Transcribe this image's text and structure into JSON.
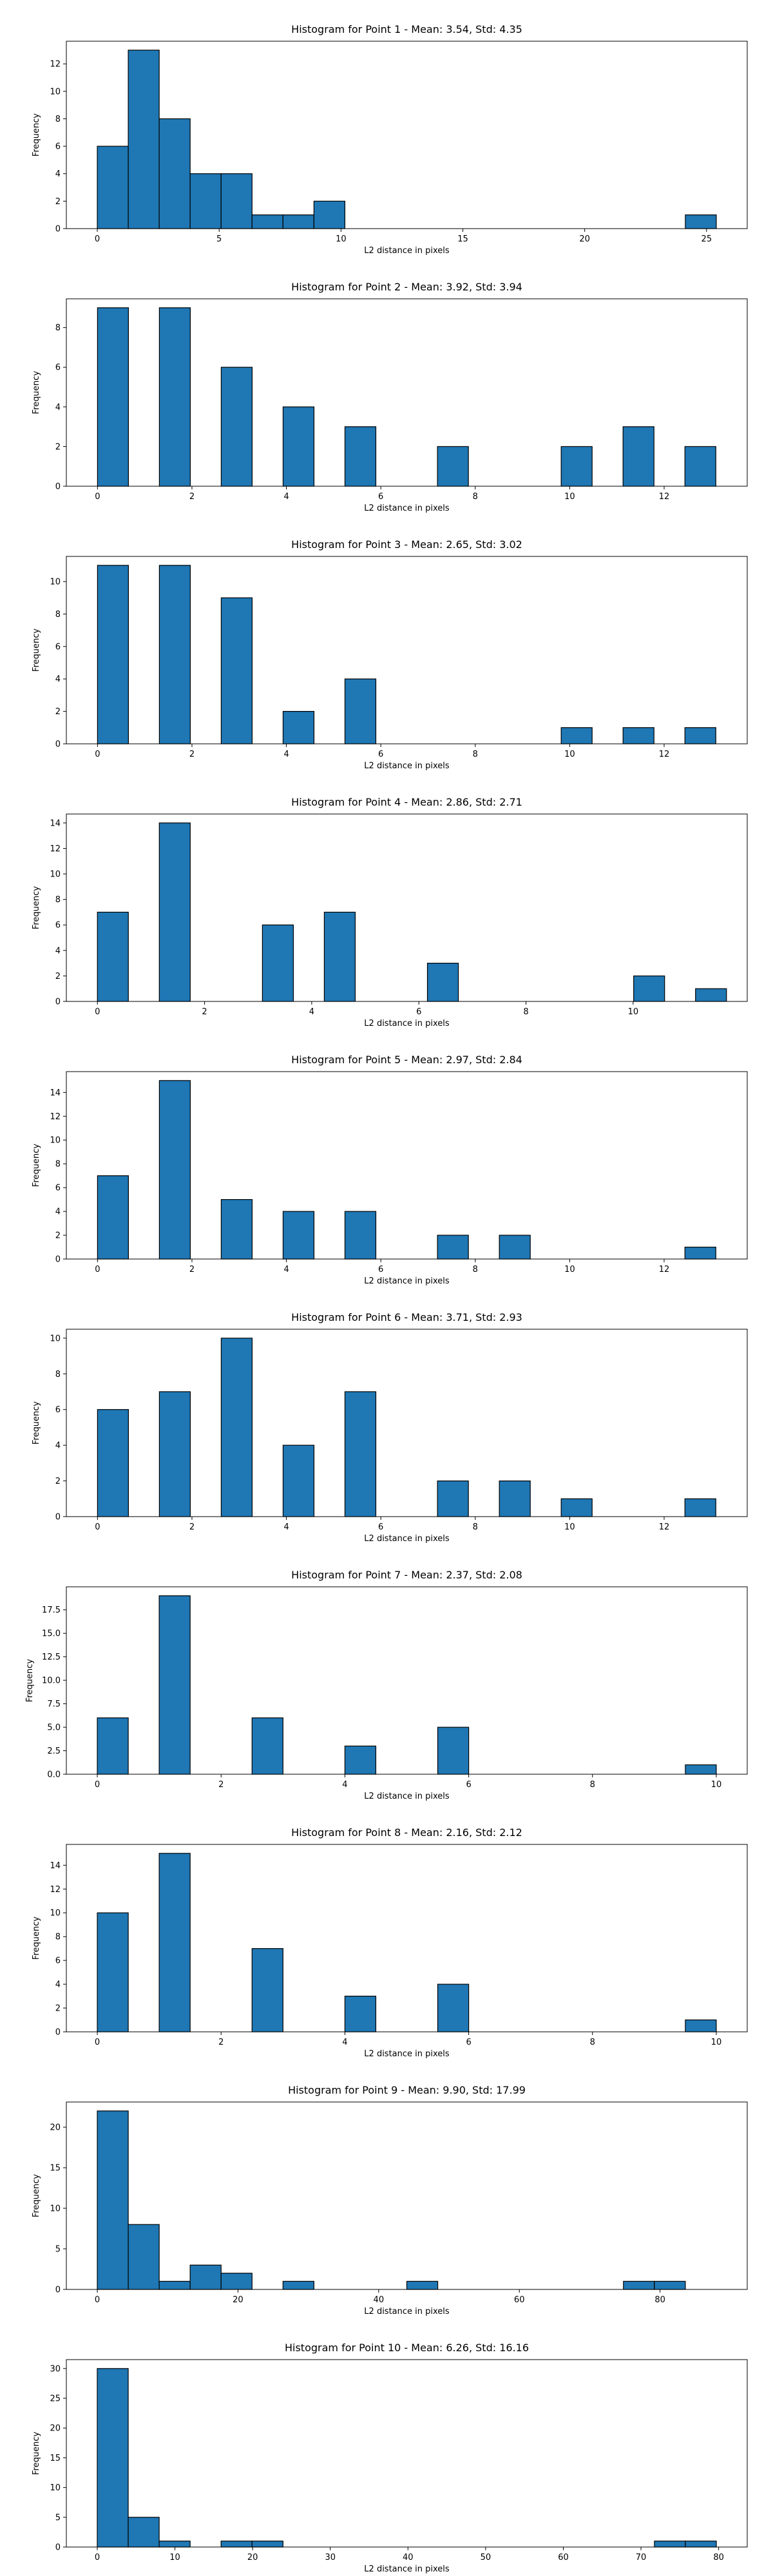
{
  "chart_data": [
    {
      "type": "bar",
      "title": "Histogram for Point 1 - Mean: 3.54, Std: 4.35",
      "xlabel": "L2 distance in pixels",
      "ylabel": "Frequency",
      "bin_width": 1.27,
      "xlim": [
        -1.27,
        26.67
      ],
      "ylim": [
        0,
        13.65
      ],
      "xticks": [
        0,
        5,
        10,
        15,
        20,
        25
      ],
      "yticks": [
        0,
        2,
        4,
        6,
        8,
        10,
        12
      ],
      "bins": [
        {
          "x": 0.0,
          "count": 6
        },
        {
          "x": 1.27,
          "count": 13
        },
        {
          "x": 2.54,
          "count": 8
        },
        {
          "x": 3.81,
          "count": 4
        },
        {
          "x": 5.08,
          "count": 4
        },
        {
          "x": 6.35,
          "count": 1
        },
        {
          "x": 7.62,
          "count": 1
        },
        {
          "x": 8.89,
          "count": 2
        },
        {
          "x": 24.13,
          "count": 1
        }
      ]
    },
    {
      "type": "bar",
      "title": "Histogram for Point 2 - Mean: 3.92, Std: 3.94",
      "xlabel": "L2 distance in pixels",
      "ylabel": "Frequency",
      "bin_width": 0.655,
      "xlim": [
        -0.66,
        13.76
      ],
      "ylim": [
        0,
        9.45
      ],
      "xticks": [
        0,
        2,
        4,
        6,
        8,
        10,
        12
      ],
      "yticks": [
        0,
        2,
        4,
        6,
        8
      ],
      "bins": [
        {
          "x": 0.0,
          "count": 9
        },
        {
          "x": 1.31,
          "count": 9
        },
        {
          "x": 2.62,
          "count": 6
        },
        {
          "x": 3.93,
          "count": 4
        },
        {
          "x": 5.24,
          "count": 3
        },
        {
          "x": 7.2,
          "count": 2
        },
        {
          "x": 9.82,
          "count": 2
        },
        {
          "x": 11.13,
          "count": 3
        },
        {
          "x": 12.44,
          "count": 2
        }
      ]
    },
    {
      "type": "bar",
      "title": "Histogram for Point 3 - Mean: 2.65, Std: 3.02",
      "xlabel": "L2 distance in pixels",
      "ylabel": "Frequency",
      "bin_width": 0.655,
      "xlim": [
        -0.66,
        13.76
      ],
      "ylim": [
        0,
        11.55
      ],
      "xticks": [
        0,
        2,
        4,
        6,
        8,
        10,
        12
      ],
      "yticks": [
        0,
        2,
        4,
        6,
        8,
        10
      ],
      "bins": [
        {
          "x": 0.0,
          "count": 11
        },
        {
          "x": 1.31,
          "count": 11
        },
        {
          "x": 2.62,
          "count": 9
        },
        {
          "x": 3.93,
          "count": 2
        },
        {
          "x": 5.24,
          "count": 4
        },
        {
          "x": 9.82,
          "count": 1
        },
        {
          "x": 11.13,
          "count": 1
        },
        {
          "x": 12.44,
          "count": 1
        }
      ]
    },
    {
      "type": "bar",
      "title": "Histogram for Point 4 - Mean: 2.86, Std: 2.71",
      "xlabel": "L2 distance in pixels",
      "ylabel": "Frequency",
      "bin_width": 0.5775,
      "xlim": [
        -0.58,
        12.13
      ],
      "ylim": [
        0,
        14.7
      ],
      "xticks": [
        0,
        2,
        4,
        6,
        8,
        10
      ],
      "yticks": [
        0,
        2,
        4,
        6,
        8,
        10,
        12,
        14
      ],
      "bins": [
        {
          "x": 0.0,
          "count": 7
        },
        {
          "x": 1.155,
          "count": 14
        },
        {
          "x": 3.08,
          "count": 6
        },
        {
          "x": 4.235,
          "count": 7
        },
        {
          "x": 6.16,
          "count": 3
        },
        {
          "x": 10.01,
          "count": 2
        },
        {
          "x": 11.165,
          "count": 1
        }
      ]
    },
    {
      "type": "bar",
      "title": "Histogram for Point 5 - Mean: 2.97, Std: 2.84",
      "xlabel": "L2 distance in pixels",
      "ylabel": "Frequency",
      "bin_width": 0.655,
      "xlim": [
        -0.66,
        13.76
      ],
      "ylim": [
        0,
        15.75
      ],
      "xticks": [
        0,
        2,
        4,
        6,
        8,
        10,
        12
      ],
      "yticks": [
        0,
        2,
        4,
        6,
        8,
        10,
        12,
        14
      ],
      "bins": [
        {
          "x": 0.0,
          "count": 7
        },
        {
          "x": 1.31,
          "count": 15
        },
        {
          "x": 2.62,
          "count": 5
        },
        {
          "x": 3.93,
          "count": 4
        },
        {
          "x": 5.24,
          "count": 4
        },
        {
          "x": 7.2,
          "count": 2
        },
        {
          "x": 8.51,
          "count": 2
        },
        {
          "x": 12.44,
          "count": 1
        }
      ]
    },
    {
      "type": "bar",
      "title": "Histogram for Point 6 - Mean: 3.71, Std: 2.93",
      "xlabel": "L2 distance in pixels",
      "ylabel": "Frequency",
      "bin_width": 0.655,
      "xlim": [
        -0.66,
        13.76
      ],
      "ylim": [
        0,
        10.5
      ],
      "xticks": [
        0,
        2,
        4,
        6,
        8,
        10,
        12
      ],
      "yticks": [
        0,
        2,
        4,
        6,
        8,
        10
      ],
      "bins": [
        {
          "x": 0.0,
          "count": 6
        },
        {
          "x": 1.31,
          "count": 7
        },
        {
          "x": 2.62,
          "count": 10
        },
        {
          "x": 3.93,
          "count": 4
        },
        {
          "x": 5.24,
          "count": 7
        },
        {
          "x": 7.2,
          "count": 2
        },
        {
          "x": 8.51,
          "count": 2
        },
        {
          "x": 9.82,
          "count": 1
        },
        {
          "x": 12.44,
          "count": 1
        }
      ]
    },
    {
      "type": "bar",
      "title": "Histogram for Point 7 - Mean: 2.37, Std: 2.08",
      "xlabel": "L2 distance in pixels",
      "ylabel": "Frequency",
      "bin_width": 0.5,
      "xlim": [
        -0.5,
        10.5
      ],
      "ylim": [
        0,
        19.95
      ],
      "xticks": [
        0,
        2,
        4,
        6,
        8,
        10
      ],
      "yticks": [
        0.0,
        2.5,
        5.0,
        7.5,
        10.0,
        12.5,
        15.0,
        17.5
      ],
      "ytick_format": "0.0",
      "bins": [
        {
          "x": 0.0,
          "count": 6
        },
        {
          "x": 1.0,
          "count": 19
        },
        {
          "x": 2.5,
          "count": 6
        },
        {
          "x": 4.0,
          "count": 3
        },
        {
          "x": 5.5,
          "count": 5
        },
        {
          "x": 9.5,
          "count": 1
        }
      ]
    },
    {
      "type": "bar",
      "title": "Histogram for Point 8 - Mean: 2.16, Std: 2.12",
      "xlabel": "L2 distance in pixels",
      "ylabel": "Frequency",
      "bin_width": 0.5,
      "xlim": [
        -0.5,
        10.5
      ],
      "ylim": [
        0,
        15.75
      ],
      "xticks": [
        0,
        2,
        4,
        6,
        8,
        10
      ],
      "yticks": [
        0,
        2,
        4,
        6,
        8,
        10,
        12,
        14
      ],
      "bins": [
        {
          "x": 0.0,
          "count": 10
        },
        {
          "x": 1.0,
          "count": 15
        },
        {
          "x": 2.5,
          "count": 7
        },
        {
          "x": 4.0,
          "count": 3
        },
        {
          "x": 5.5,
          "count": 4
        },
        {
          "x": 9.5,
          "count": 1
        }
      ]
    },
    {
      "type": "bar",
      "title": "Histogram for Point 9 - Mean: 9.90, Std: 17.99",
      "xlabel": "L2 distance in pixels",
      "ylabel": "Frequency",
      "bin_width": 4.4,
      "xlim": [
        -4.4,
        92.4
      ],
      "ylim": [
        0,
        23.1
      ],
      "xticks": [
        0,
        20,
        40,
        60,
        80
      ],
      "yticks": [
        0,
        5,
        10,
        15,
        20
      ],
      "bins": [
        {
          "x": 0.0,
          "count": 22
        },
        {
          "x": 4.4,
          "count": 8
        },
        {
          "x": 8.8,
          "count": 1
        },
        {
          "x": 13.2,
          "count": 3
        },
        {
          "x": 17.6,
          "count": 2
        },
        {
          "x": 26.4,
          "count": 1
        },
        {
          "x": 44.0,
          "count": 1
        },
        {
          "x": 74.8,
          "count": 1
        },
        {
          "x": 79.2,
          "count": 1
        }
      ]
    },
    {
      "type": "bar",
      "title": "Histogram for Point 10 - Mean: 6.26, Std: 16.16",
      "xlabel": "L2 distance in pixels",
      "ylabel": "Frequency",
      "bin_width": 3.985,
      "xlim": [
        -3.98,
        83.68
      ],
      "ylim": [
        0,
        31.5
      ],
      "xticks": [
        0,
        10,
        20,
        30,
        40,
        50,
        60,
        70,
        80
      ],
      "yticks": [
        0,
        5,
        10,
        15,
        20,
        25,
        30
      ],
      "bins": [
        {
          "x": 0.0,
          "count": 30
        },
        {
          "x": 3.985,
          "count": 5
        },
        {
          "x": 7.97,
          "count": 1
        },
        {
          "x": 15.94,
          "count": 1
        },
        {
          "x": 19.925,
          "count": 1
        },
        {
          "x": 71.73,
          "count": 1
        },
        {
          "x": 75.715,
          "count": 1
        }
      ]
    }
  ]
}
